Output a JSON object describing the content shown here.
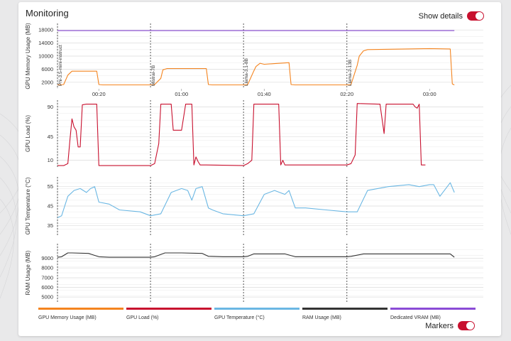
{
  "window": {
    "title": "Monitoring"
  },
  "controls": {
    "show_details": {
      "label": "Show details",
      "on": true
    },
    "markers": {
      "label": "Markers",
      "on": true
    }
  },
  "colors": {
    "gpu_memory": "#f4841f",
    "gpu_load": "#c8102e",
    "gpu_temp": "#6bb7e3",
    "ram": "#333333",
    "dedicated_vram": "#8b4bd6",
    "toggle_on": "#c8102e"
  },
  "legend": [
    {
      "name": "GPU Memory Usage (MB)",
      "color": "#f4841f"
    },
    {
      "name": "GPU Load (%)",
      "color": "#c8102e"
    },
    {
      "name": "GPU Temperature (°C)",
      "color": "#6bb7e3"
    },
    {
      "name": "RAM Usage (MB)",
      "color": "#333333"
    },
    {
      "name": "Dedicated VRAM (MB)",
      "color": "#8b4bd6"
    }
  ],
  "chart_data": [
    {
      "type": "line",
      "ylabel": "GPU Memory Usage (MB)",
      "y_ticks": [
        2000,
        6000,
        10000,
        14000,
        18000
      ],
      "ylim": [
        0,
        20000
      ],
      "xlim": [
        "00:00",
        "03:26"
      ],
      "x_ticks": [
        "00:20",
        "01:00",
        "01:40",
        "02:20",
        "03:00"
      ],
      "markers": [
        {
          "time": "00:00",
          "label": "Phi-3.5-mini-instruct"
        },
        {
          "time": "00:45",
          "label": "Mistral-7B"
        },
        {
          "time": "01:30",
          "label": "Llama-3.1-8B"
        },
        {
          "time": "02:20",
          "label": "Llama-2-13B"
        }
      ],
      "series": [
        {
          "name": "GPU Memory Usage (MB)",
          "x": [
            "00:00",
            "00:03",
            "00:05",
            "00:07",
            "00:19",
            "00:20",
            "00:22",
            "00:45",
            "00:47",
            "00:50",
            "00:51",
            "00:53",
            "01:12",
            "01:13",
            "01:15",
            "01:30",
            "01:32",
            "01:35",
            "01:36",
            "01:38",
            "01:40",
            "01:52",
            "01:53",
            "01:55",
            "02:20",
            "02:22",
            "02:25",
            "02:26",
            "02:28",
            "02:30",
            "03:00",
            "03:10",
            "03:11",
            "03:12"
          ],
          "values": [
            1200,
            1300,
            4200,
            5400,
            5400,
            1300,
            1200,
            1200,
            1300,
            3200,
            5800,
            6200,
            6200,
            1300,
            1200,
            1200,
            1300,
            5500,
            6800,
            7800,
            7500,
            8000,
            1300,
            1200,
            1200,
            1300,
            7200,
            10000,
            11600,
            12000,
            12300,
            12200,
            1500,
            1200
          ]
        },
        {
          "name": "Dedicated VRAM (MB)",
          "x": [
            "00:00",
            "03:12"
          ],
          "values": [
            17800,
            17800
          ]
        }
      ]
    },
    {
      "type": "line",
      "ylabel": "GPU Load (%)",
      "y_ticks": [
        10,
        45,
        90
      ],
      "ylim": [
        0,
        100
      ],
      "xlim": [
        "00:00",
        "03:26"
      ],
      "series": [
        {
          "name": "GPU Load (%)",
          "x": [
            "00:00",
            "00:03",
            "00:05",
            "00:06",
            "00:07",
            "00:08",
            "00:09",
            "00:10",
            "00:11",
            "00:12",
            "00:14",
            "00:19",
            "00:20",
            "00:22",
            "00:45",
            "00:47",
            "00:49",
            "00:50",
            "00:55",
            "00:56",
            "01:00",
            "01:02",
            "01:05",
            "01:06",
            "01:07",
            "01:08",
            "01:09",
            "01:10",
            "01:12",
            "01:30",
            "01:32",
            "01:34",
            "01:35",
            "01:47",
            "01:48",
            "01:49",
            "01:50",
            "01:51",
            "01:52",
            "02:20",
            "02:22",
            "02:24",
            "02:25",
            "02:35",
            "02:36",
            "02:38",
            "02:39",
            "02:40",
            "02:52",
            "02:53",
            "02:54",
            "02:55",
            "02:56",
            "02:57",
            "02:58"
          ],
          "values": [
            2,
            2,
            5,
            40,
            72,
            60,
            55,
            30,
            30,
            93,
            94,
            94,
            2,
            2,
            2,
            5,
            35,
            94,
            94,
            55,
            55,
            94,
            94,
            3,
            15,
            8,
            3,
            3,
            3,
            2,
            5,
            10,
            94,
            94,
            3,
            10,
            3,
            3,
            3,
            3,
            5,
            18,
            95,
            94,
            94,
            50,
            94,
            94,
            94,
            90,
            88,
            94,
            3,
            3,
            3
          ]
        }
      ]
    },
    {
      "type": "line",
      "ylabel": "GPU Temperature (°C)",
      "y_ticks": [
        35,
        45,
        55
      ],
      "ylim": [
        30,
        60
      ],
      "xlim": [
        "00:00",
        "03:26"
      ],
      "series": [
        {
          "name": "GPU Temperature (°C)",
          "x": [
            "00:00",
            "00:02",
            "00:05",
            "00:08",
            "00:11",
            "00:14",
            "00:16",
            "00:18",
            "00:20",
            "00:25",
            "00:30",
            "00:40",
            "00:45",
            "00:50",
            "00:55",
            "01:00",
            "01:03",
            "01:05",
            "01:07",
            "01:10",
            "01:13",
            "01:15",
            "01:20",
            "01:30",
            "01:35",
            "01:40",
            "01:45",
            "01:50",
            "01:52",
            "01:55",
            "02:00",
            "02:10",
            "02:20",
            "02:25",
            "02:30",
            "02:40",
            "02:50",
            "02:55",
            "03:00",
            "03:02",
            "03:05",
            "03:10",
            "03:12"
          ],
          "values": [
            39,
            40,
            50,
            53,
            54,
            52,
            54,
            55,
            47,
            46,
            43,
            42,
            40,
            41,
            52,
            54,
            53,
            48,
            54,
            55,
            44,
            43,
            41,
            40,
            41,
            51,
            53,
            51,
            53,
            44,
            44,
            43,
            42,
            42,
            53,
            55,
            56,
            55,
            56,
            56,
            50,
            57,
            52
          ]
        }
      ]
    },
    {
      "type": "line",
      "ylabel": "RAM Usage (MB)",
      "y_ticks": [
        5000,
        6000,
        7000,
        8000,
        9000
      ],
      "ylim": [
        4500,
        10500
      ],
      "xlim": [
        "00:00",
        "03:26"
      ],
      "series": [
        {
          "name": "RAM Usage (MB)",
          "x": [
            "00:00",
            "00:02",
            "00:05",
            "00:07",
            "00:15",
            "00:20",
            "00:25",
            "00:45",
            "00:47",
            "00:52",
            "01:00",
            "01:10",
            "01:13",
            "01:20",
            "01:30",
            "01:32",
            "01:35",
            "01:50",
            "01:55",
            "02:10",
            "02:20",
            "02:22",
            "02:28",
            "03:10",
            "03:12"
          ],
          "values": [
            9100,
            9150,
            9550,
            9550,
            9500,
            9150,
            9100,
            9100,
            9150,
            9550,
            9550,
            9500,
            9200,
            9150,
            9150,
            9200,
            9450,
            9450,
            9150,
            9150,
            9150,
            9200,
            9450,
            9450,
            9100
          ]
        }
      ]
    }
  ]
}
